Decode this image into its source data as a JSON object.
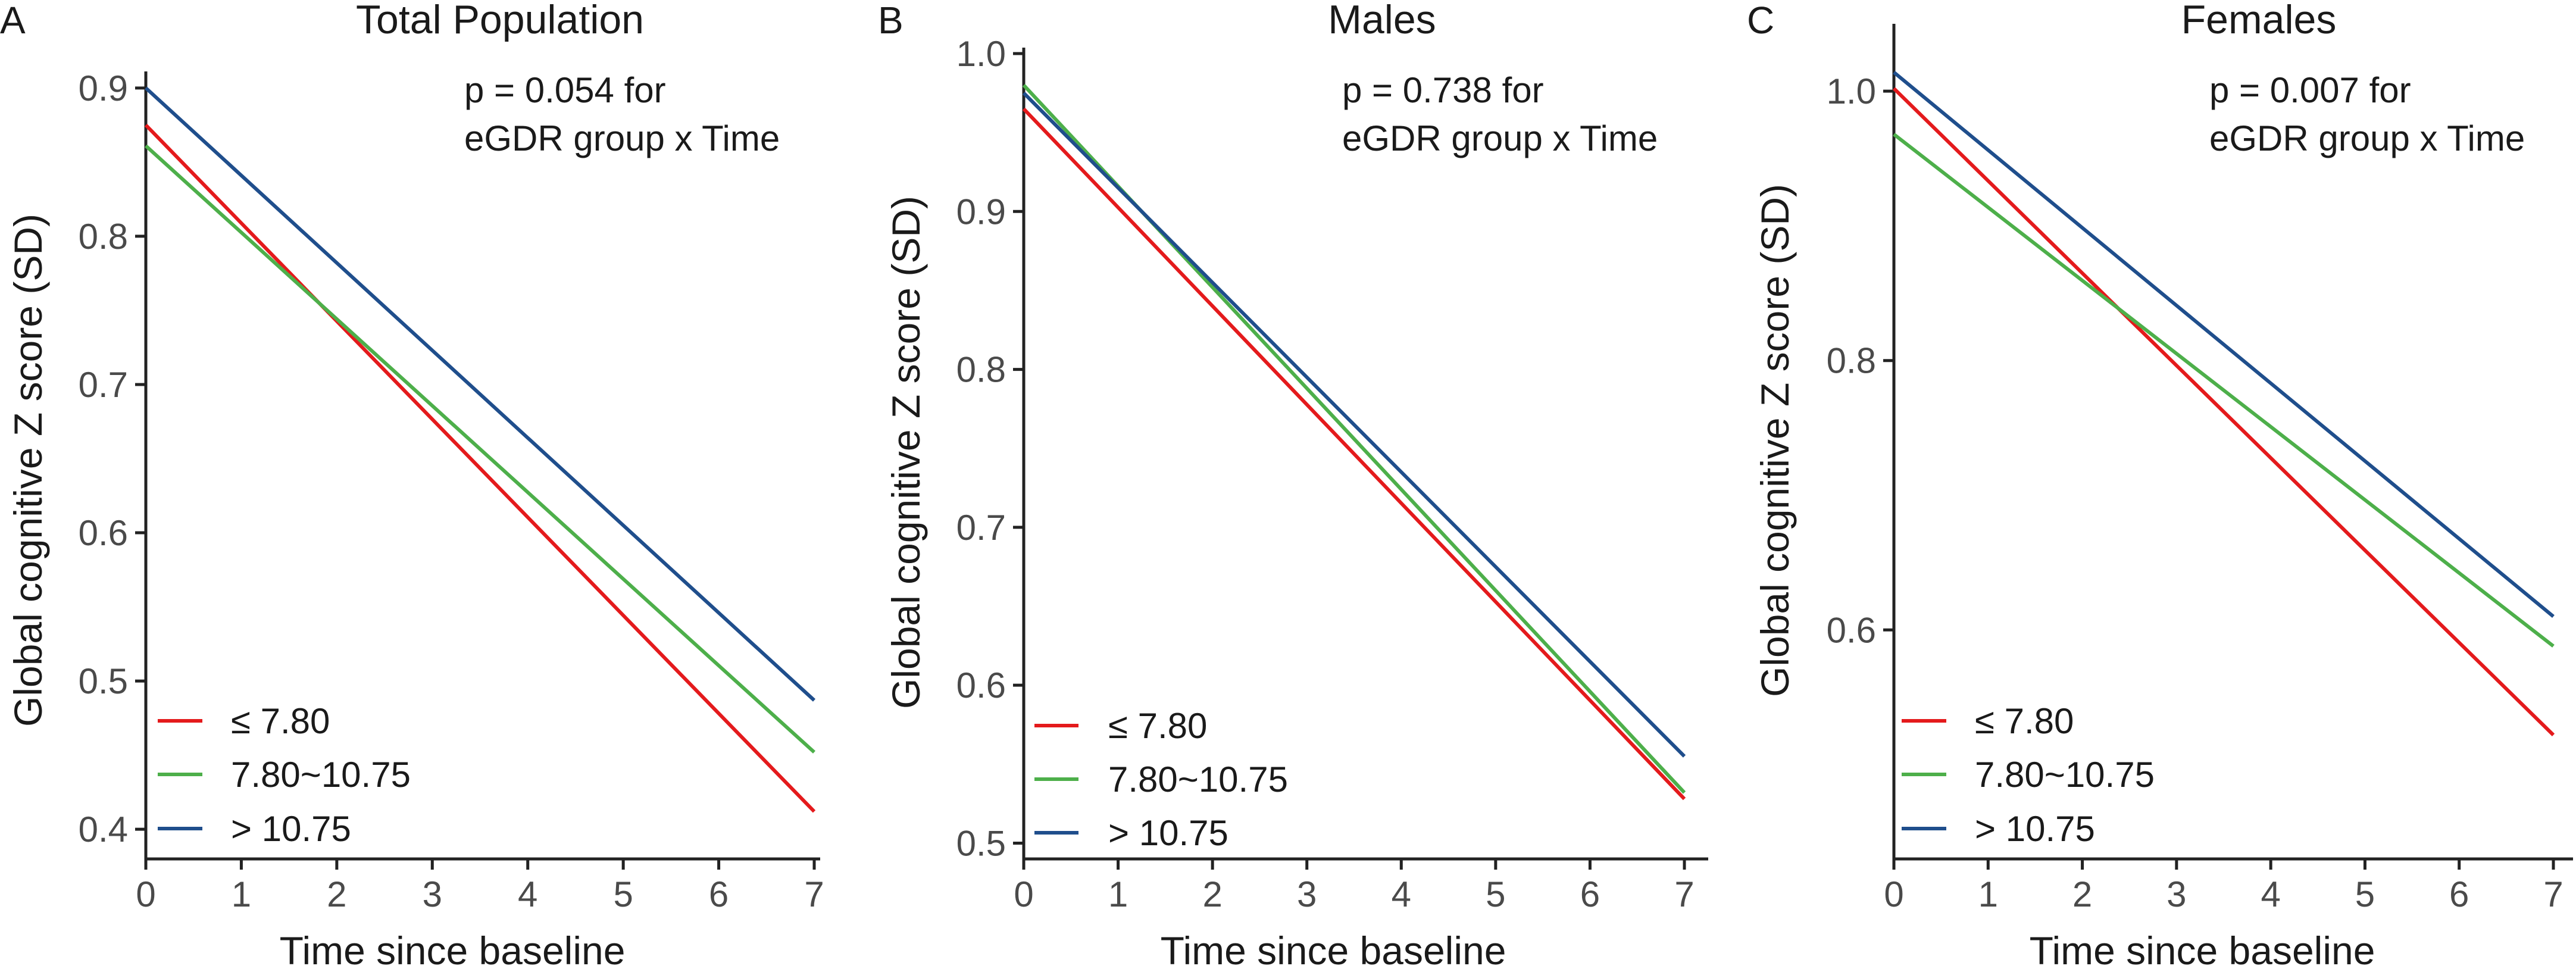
{
  "chart_data": [
    {
      "type": "line",
      "panel_label": "A",
      "title": "Total Population",
      "annotation": [
        "p = 0.054 for",
        "eGDR group x Time"
      ],
      "xlabel": "Time since baseline",
      "ylabel": "Global cognitive Z score (SD)",
      "xlim": [
        0,
        7
      ],
      "ylim": [
        0.38,
        0.92
      ],
      "x_ticks": [
        0,
        1,
        2,
        3,
        4,
        5,
        6,
        7
      ],
      "y_ticks": [
        0.4,
        0.5,
        0.6,
        0.7,
        0.8,
        0.9
      ],
      "y_tick_labels": [
        "0.4",
        "0.5",
        "0.6",
        "0.7",
        "0.8",
        "0.9"
      ],
      "series": [
        {
          "name": "≤ 7.80",
          "color": "#e41a1c",
          "x": [
            0,
            7
          ],
          "values": [
            0.875,
            0.412
          ]
        },
        {
          "name": "7.80~10.75",
          "color": "#4daf4a",
          "x": [
            0,
            7
          ],
          "values": [
            0.861,
            0.452
          ]
        },
        {
          "name": "> 10.75",
          "color": "#1f4e8c",
          "x": [
            0,
            7
          ],
          "values": [
            0.9,
            0.487
          ]
        }
      ],
      "legend_position": "bottom-left"
    },
    {
      "type": "line",
      "panel_label": "B",
      "title": "Males",
      "annotation": [
        "p = 0.738 for",
        "eGDR group x Time"
      ],
      "xlabel": "Time since baseline",
      "ylabel": "Global cognitive Z score (SD)",
      "xlim": [
        0,
        7
      ],
      "ylim": [
        0.49,
        1.0
      ],
      "x_ticks": [
        0,
        1,
        2,
        3,
        4,
        5,
        6,
        7
      ],
      "y_ticks": [
        0.5,
        0.6,
        0.7,
        0.8,
        0.9,
        1.0
      ],
      "y_tick_labels": [
        "0.5",
        "0.6",
        "0.7",
        "0.8",
        "0.9",
        "1.0"
      ],
      "series": [
        {
          "name": "≤ 7.80",
          "color": "#e41a1c",
          "x": [
            0,
            7
          ],
          "values": [
            0.965,
            0.528
          ]
        },
        {
          "name": "7.80~10.75",
          "color": "#4daf4a",
          "x": [
            0,
            7
          ],
          "values": [
            0.98,
            0.532
          ]
        },
        {
          "name": "> 10.75",
          "color": "#1f4e8c",
          "x": [
            0,
            7
          ],
          "values": [
            0.975,
            0.555
          ]
        }
      ],
      "legend_position": "bottom-left"
    },
    {
      "type": "line",
      "panel_label": "C",
      "title": "Females",
      "annotation": [
        "p = 0.007 for",
        "eGDR group x Time"
      ],
      "xlabel": "Time since baseline",
      "ylabel": "Global cognitive Z score (SD)",
      "xlim": [
        0,
        7
      ],
      "ylim": [
        0.43,
        1.05
      ],
      "x_ticks": [
        0,
        1,
        2,
        3,
        4,
        5,
        6,
        7
      ],
      "y_ticks": [
        0.6,
        0.8,
        1.0
      ],
      "y_tick_labels": [
        "0.6",
        "0.8",
        "1.0"
      ],
      "series": [
        {
          "name": "≤ 7.80",
          "color": "#e41a1c",
          "x": [
            0,
            7
          ],
          "values": [
            1.002,
            0.522
          ]
        },
        {
          "name": "7.80~10.75",
          "color": "#4daf4a",
          "x": [
            0,
            7
          ],
          "values": [
            0.968,
            0.588
          ]
        },
        {
          "name": "> 10.75",
          "color": "#1f4e8c",
          "x": [
            0,
            7
          ],
          "values": [
            1.014,
            0.61
          ]
        }
      ],
      "legend_position": "bottom-left"
    }
  ]
}
